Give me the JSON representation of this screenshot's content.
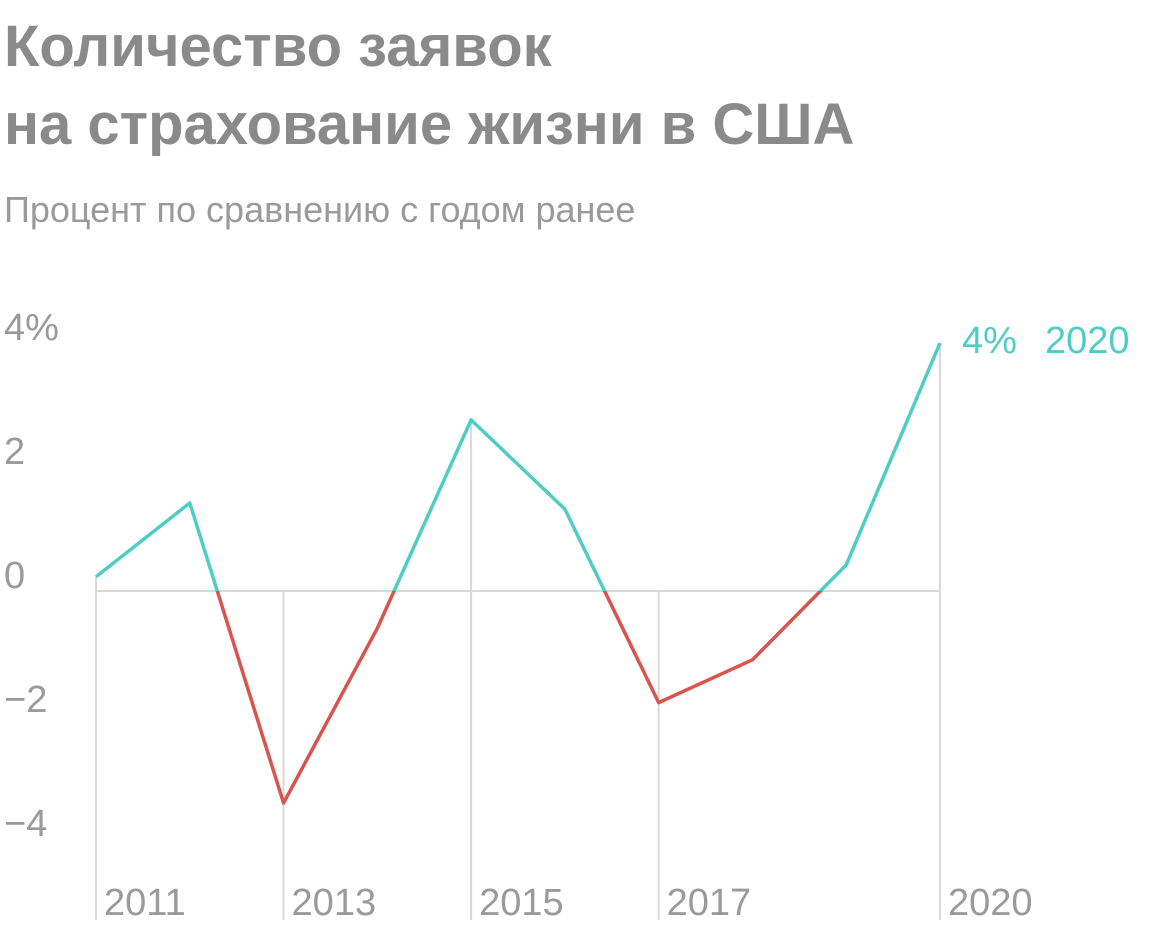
{
  "chart_data": {
    "type": "line",
    "title": [
      "Количество заявок",
      "на страхование жизни в США"
    ],
    "subtitle": "Процент по сравнению с годом ранее",
    "x": [
      2011,
      2012,
      2013,
      2014,
      2015,
      2016,
      2017,
      2018,
      2019,
      2020
    ],
    "values": [
      0.23,
      1.42,
      -3.42,
      -0.6,
      2.76,
      1.32,
      -1.8,
      -1.11,
      0.42,
      4
    ],
    "value_labels": [
      null,
      null,
      null,
      null,
      null,
      null,
      null,
      null,
      null,
      "4%"
    ],
    "color": "#4fcdc4",
    "negative_color": "#d9534f",
    "xlim": [
      2011,
      2020
    ],
    "xticks": [
      2011,
      2013,
      2015,
      2017,
      2020
    ],
    "ylim": [
      -5,
      4
    ],
    "yticks": [
      {
        "value": 4,
        "label": "4%"
      },
      2,
      0,
      {
        "value": -2,
        "label": "−2"
      },
      {
        "value": -4,
        "label": "−4"
      }
    ],
    "xgrid": true,
    "zero_line": true
  }
}
